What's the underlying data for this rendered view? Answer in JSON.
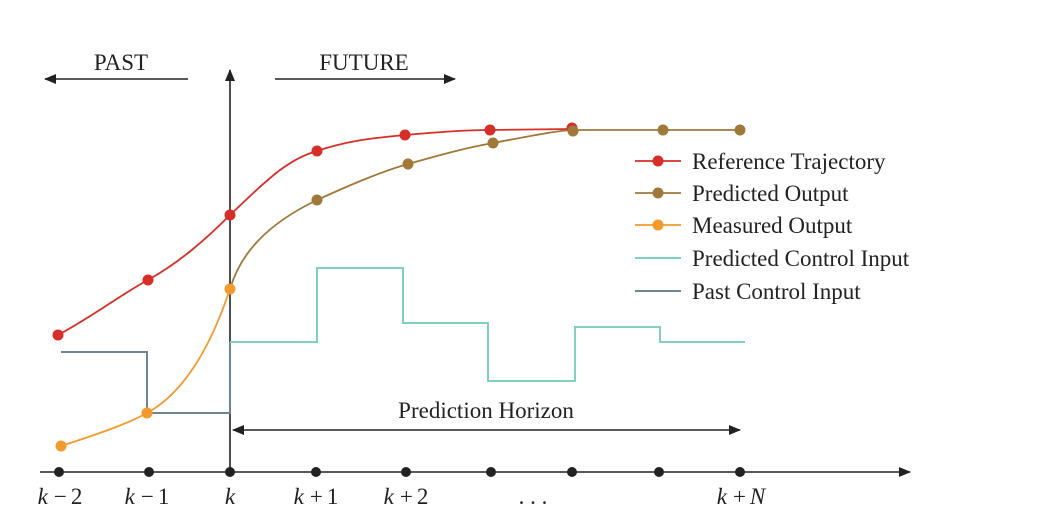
{
  "diagram": {
    "past_label": "PAST",
    "future_label": "FUTURE",
    "horizon_label": "Prediction Horizon",
    "ticks": [
      {
        "var": "k",
        "op": "−",
        "num": "2"
      },
      {
        "var": "k",
        "op": "−",
        "num": "1"
      },
      {
        "var": "k",
        "op": "",
        "num": ""
      },
      {
        "var": "k",
        "op": "+",
        "num": "1"
      },
      {
        "var": "k",
        "op": "+",
        "num": "2"
      },
      {
        "var": "",
        "op": "",
        "num": ". . ."
      },
      {
        "var": "k",
        "op": "+",
        "num": "N"
      }
    ],
    "legend": [
      {
        "label": "Reference Trajectory",
        "color": "#d62f27",
        "marker": true
      },
      {
        "label": "Predicted Output",
        "color": "#a0783a",
        "marker": true
      },
      {
        "label": "Measured Output",
        "color": "#f39a2e",
        "marker": true
      },
      {
        "label": "Predicted Control Input",
        "color": "#7fd0bc",
        "marker": false
      },
      {
        "label": "Past Control Input",
        "color": "#6f8494",
        "marker": false
      }
    ]
  }
}
